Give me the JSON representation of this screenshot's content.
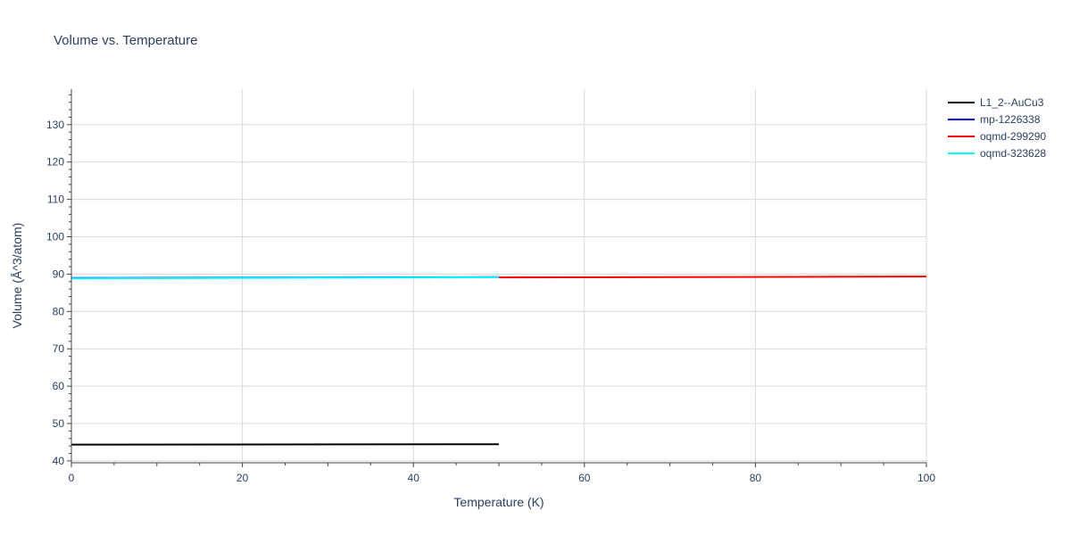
{
  "chart_data": {
    "type": "line",
    "title": "Volume vs. Temperature",
    "xlabel": "Temperature (K)",
    "ylabel": "Volume (Å^3/atom)",
    "xlim": [
      0,
      100
    ],
    "ylim": [
      39.5,
      139.5
    ],
    "x_ticks": [
      0,
      20,
      40,
      60,
      80,
      100
    ],
    "y_ticks": [
      40,
      50,
      60,
      70,
      80,
      90,
      100,
      110,
      120,
      130
    ],
    "grid": true,
    "legend_position": "top-right",
    "series": [
      {
        "name": "L1_2--AuCu3",
        "color": "#000000",
        "x": [
          0,
          50
        ],
        "y": [
          44.35,
          44.45
        ]
      },
      {
        "name": "mp-1226338",
        "color": "#0000ff",
        "x": [
          0,
          50
        ],
        "y": [
          88.95,
          89.2
        ]
      },
      {
        "name": "oqmd-299290",
        "color": "#ff0000",
        "x": [
          50,
          100
        ],
        "y": [
          89.1,
          89.35
        ]
      },
      {
        "name": "oqmd-323628",
        "color": "#00ffff",
        "x": [
          0,
          50
        ],
        "y": [
          88.85,
          89.15
        ]
      }
    ]
  }
}
